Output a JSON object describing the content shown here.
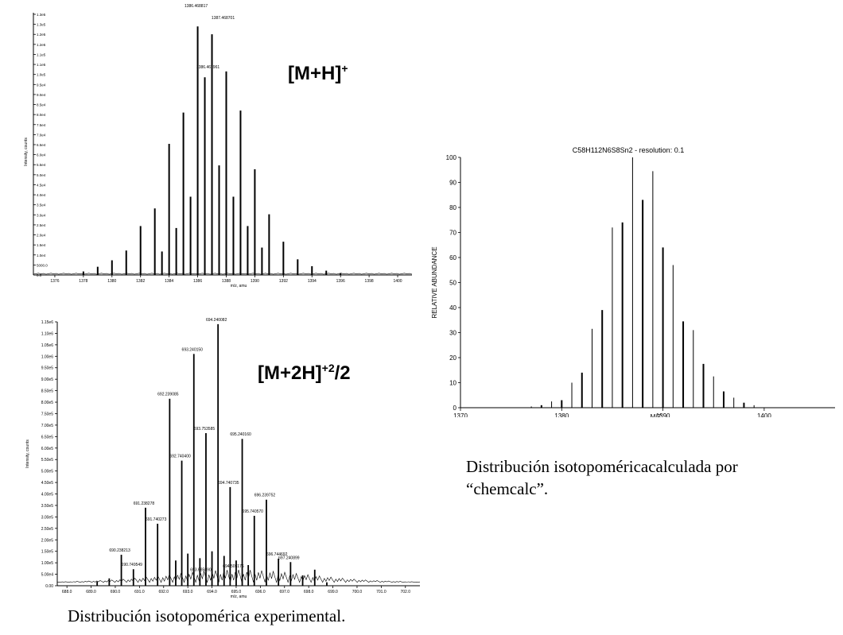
{
  "captions": {
    "experimental": "Distribución isotopomérica experimental.",
    "calculated_line1": "Distribución isotopoméricacalculada por",
    "calculated_line2": "“chemcalc”."
  },
  "chart_data": [
    {
      "type": "bar",
      "ion_label_base": "[M+H]",
      "ion_label_sup": "+",
      "xlabel": "m/z, amu",
      "ylabel": "Intensity, counts",
      "xlim": [
        1374.5,
        1401
      ],
      "ylim": [
        0,
        134000
      ],
      "x_ticks": [
        "1376",
        "1378",
        "1380",
        "1382",
        "1384",
        "1386",
        "1388",
        "1390",
        "1392",
        "1394",
        "1396",
        "1398",
        "1400"
      ],
      "y_ticks": [
        "1.3e5",
        "1.3e5",
        "1.2e5",
        "1.2e5",
        "1.1e5",
        "1.1e5",
        "1.0e5",
        "9.5e4",
        "9.0e4",
        "8.5e4",
        "8.0e4",
        "7.5e4",
        "7.0e4",
        "6.5e4",
        "6.0e4",
        "5.5e4",
        "5.0e4",
        "4.5e4",
        "4.0e4",
        "3.5e4",
        "3.0e4",
        "2.5e4",
        "2.0e4",
        "1.5e4",
        "1.0e4",
        "5000.0",
        "0.0"
      ],
      "peak_labels": [
        {
          "x": 1386,
          "text": "1386.468817"
        },
        {
          "x": 1387,
          "text": "1387.468701"
        },
        {
          "x": 1386.5,
          "text": "1386.467961"
        }
      ],
      "peaks": [
        {
          "x": 1378.0,
          "y": 1800
        },
        {
          "x": 1379.0,
          "y": 4200
        },
        {
          "x": 1380.0,
          "y": 7500
        },
        {
          "x": 1381.0,
          "y": 12500
        },
        {
          "x": 1382.0,
          "y": 25000
        },
        {
          "x": 1383.0,
          "y": 34000
        },
        {
          "x": 1383.5,
          "y": 12000
        },
        {
          "x": 1384.0,
          "y": 67000
        },
        {
          "x": 1384.5,
          "y": 24000
        },
        {
          "x": 1385.0,
          "y": 83000
        },
        {
          "x": 1385.5,
          "y": 40000
        },
        {
          "x": 1386.0,
          "y": 127000
        },
        {
          "x": 1386.5,
          "y": 101000
        },
        {
          "x": 1387.0,
          "y": 123000
        },
        {
          "x": 1387.5,
          "y": 56000
        },
        {
          "x": 1388.0,
          "y": 104000
        },
        {
          "x": 1388.5,
          "y": 40000
        },
        {
          "x": 1389.0,
          "y": 84000
        },
        {
          "x": 1389.5,
          "y": 25000
        },
        {
          "x": 1390.0,
          "y": 54000
        },
        {
          "x": 1390.5,
          "y": 14000
        },
        {
          "x": 1391.0,
          "y": 31000
        },
        {
          "x": 1392.0,
          "y": 17000
        },
        {
          "x": 1393.0,
          "y": 8000
        },
        {
          "x": 1394.0,
          "y": 4500
        },
        {
          "x": 1395.0,
          "y": 2200
        },
        {
          "x": 1396.0,
          "y": 1000
        }
      ]
    },
    {
      "type": "bar",
      "ion_label_base": "[M+2H]",
      "ion_label_sup": "+2",
      "ion_label_tail": "/2",
      "xlabel": "m/z, amu",
      "ylabel": "Intensity, counts",
      "xlim": [
        687.6,
        702.6
      ],
      "ylim": [
        0,
        1150000
      ],
      "x_ticks": [
        "688.0",
        "689.0",
        "690.0",
        "691.0",
        "692.0",
        "693.0",
        "694.0",
        "695.0",
        "696.0",
        "697.0",
        "698.0",
        "699.0",
        "700.0",
        "701.0",
        "702.0"
      ],
      "y_ticks": [
        "1.15e6",
        "1.10e6",
        "1.05e6",
        "1.00e6",
        "9.50e5",
        "9.00e5",
        "8.50e5",
        "8.00e5",
        "7.50e5",
        "7.00e5",
        "6.50e5",
        "6.00e5",
        "5.50e5",
        "5.00e5",
        "4.50e5",
        "4.00e5",
        "3.50e5",
        "3.00e5",
        "2.50e5",
        "2.00e5",
        "1.50e5",
        "1.00e5",
        "5.00e4",
        "0.00"
      ],
      "peak_labels": [
        {
          "x": 690.25,
          "y": 135000,
          "text": "690.238213"
        },
        {
          "x": 690.75,
          "y": 72000,
          "text": "690.749549"
        },
        {
          "x": 691.25,
          "y": 340000,
          "text": "691.238278"
        },
        {
          "x": 691.75,
          "y": 270000,
          "text": "691.740273"
        },
        {
          "x": 692.25,
          "y": 815000,
          "text": "692.239085"
        },
        {
          "x": 692.75,
          "y": 545000,
          "text": "692.740400"
        },
        {
          "x": 693.25,
          "y": 1010000,
          "text": "693.240150"
        },
        {
          "x": 693.75,
          "y": 665000,
          "text": "693.753585"
        },
        {
          "x": 694.25,
          "y": 1140000,
          "text": "694.240082"
        },
        {
          "x": 694.75,
          "y": 430000,
          "text": "694.740735"
        },
        {
          "x": 695.25,
          "y": 640000,
          "text": "695.240160"
        },
        {
          "x": 695.75,
          "y": 305000,
          "text": "695.740570"
        },
        {
          "x": 696.25,
          "y": 375000,
          "text": "696.239752"
        },
        {
          "x": 696.75,
          "y": 118000,
          "text": "696.744692"
        },
        {
          "x": 697.25,
          "y": 103000,
          "text": "697.240899"
        },
        {
          "x": 693.6,
          "y": 50000,
          "text": "693.685890"
        },
        {
          "x": 694.95,
          "y": 65000,
          "text": "694.505176"
        }
      ],
      "peaks": [
        {
          "x": 689.25,
          "y": 18000
        },
        {
          "x": 689.75,
          "y": 32000
        },
        {
          "x": 690.25,
          "y": 135000
        },
        {
          "x": 690.75,
          "y": 72000
        },
        {
          "x": 691.25,
          "y": 340000
        },
        {
          "x": 691.75,
          "y": 270000
        },
        {
          "x": 692.25,
          "y": 815000
        },
        {
          "x": 692.5,
          "y": 110000
        },
        {
          "x": 692.75,
          "y": 545000
        },
        {
          "x": 693.0,
          "y": 140000
        },
        {
          "x": 693.25,
          "y": 1010000
        },
        {
          "x": 693.5,
          "y": 120000
        },
        {
          "x": 693.75,
          "y": 665000
        },
        {
          "x": 694.0,
          "y": 150000
        },
        {
          "x": 694.25,
          "y": 1140000
        },
        {
          "x": 694.5,
          "y": 130000
        },
        {
          "x": 694.75,
          "y": 430000
        },
        {
          "x": 695.0,
          "y": 110000
        },
        {
          "x": 695.25,
          "y": 640000
        },
        {
          "x": 695.5,
          "y": 90000
        },
        {
          "x": 695.75,
          "y": 305000
        },
        {
          "x": 696.25,
          "y": 375000
        },
        {
          "x": 696.75,
          "y": 118000
        },
        {
          "x": 697.25,
          "y": 103000
        },
        {
          "x": 697.75,
          "y": 45000
        },
        {
          "x": 698.25,
          "y": 70000
        },
        {
          "x": 698.75,
          "y": 15000
        }
      ]
    },
    {
      "type": "bar",
      "title": "C58H112N6S8Sn2 - resolution: 0.1",
      "xlabel": "M/Z",
      "ylabel": "RELATIVE ABUNDANCE",
      "xlim": [
        1370,
        1407
      ],
      "ylim": [
        0,
        100
      ],
      "x_ticks": [
        1370,
        1380,
        1390,
        1400
      ],
      "y_ticks": [
        0,
        10,
        20,
        30,
        40,
        50,
        60,
        70,
        80,
        90,
        100
      ],
      "peaks": [
        {
          "x": 1377,
          "y": 0.5
        },
        {
          "x": 1378,
          "y": 1
        },
        {
          "x": 1379,
          "y": 2.5
        },
        {
          "x": 1380,
          "y": 3
        },
        {
          "x": 1381,
          "y": 10
        },
        {
          "x": 1382,
          "y": 14
        },
        {
          "x": 1383,
          "y": 31.5
        },
        {
          "x": 1384,
          "y": 39
        },
        {
          "x": 1385,
          "y": 72
        },
        {
          "x": 1386,
          "y": 74
        },
        {
          "x": 1387,
          "y": 100
        },
        {
          "x": 1388,
          "y": 83
        },
        {
          "x": 1389,
          "y": 94.5
        },
        {
          "x": 1390,
          "y": 64
        },
        {
          "x": 1391,
          "y": 57
        },
        {
          "x": 1392,
          "y": 34.5
        },
        {
          "x": 1393,
          "y": 31
        },
        {
          "x": 1394,
          "y": 17.5
        },
        {
          "x": 1395,
          "y": 12.5
        },
        {
          "x": 1396,
          "y": 6.5
        },
        {
          "x": 1397,
          "y": 4
        },
        {
          "x": 1398,
          "y": 2
        },
        {
          "x": 1399,
          "y": 1
        }
      ]
    }
  ]
}
